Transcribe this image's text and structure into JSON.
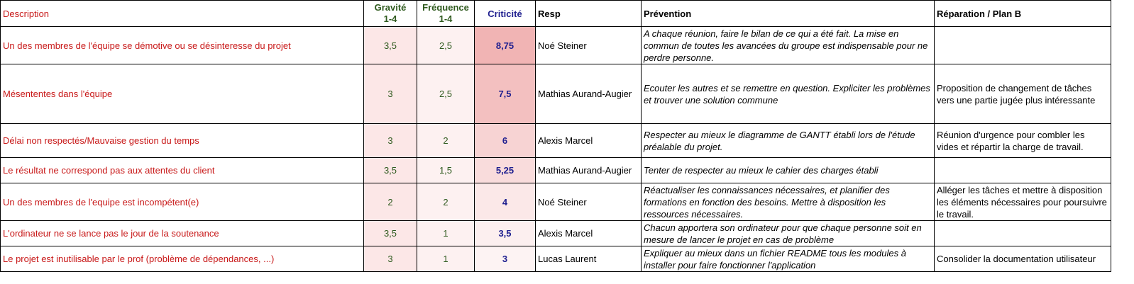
{
  "headers": {
    "description": "Description",
    "gravite": "Gravité",
    "gravite_range": "1-4",
    "frequence": "Fréquence",
    "frequence_range": "1-4",
    "criticite": "Criticité",
    "resp": "Resp",
    "prevention": "Prévention",
    "reparation": "Réparation / Plan B"
  },
  "colors": {
    "description_text": "#c81818",
    "gravity_text": "#2f5a1e",
    "criticity_text": "#1f1f8f"
  },
  "rows": [
    {
      "description": "Un des membres de l'équipe se démotive ou se désinteresse du projet",
      "gravite": "3,5",
      "frequence": "2,5",
      "criticite": "8,75",
      "crit_color": "#f1b4b4",
      "resp": "Noé Steiner",
      "prevention": "A chaque réunion, faire le bilan de ce qui a été fait. La mise en commun de toutes les avancées du groupe est indispensable pour ne perdre personne.",
      "reparation": ""
    },
    {
      "description": "Mésententes dans l'équipe",
      "gravite": "3",
      "frequence": "2,5",
      "criticite": "7,5",
      "crit_color": "#f3c0c0",
      "resp": "Mathias Aurand-Augier",
      "prevention": "Ecouter les autres et se remettre en question. Expliciter les problèmes et trouver une solution commune",
      "reparation": "Proposition de changement de tâches vers une partie jugée plus intéressante"
    },
    {
      "description": "Délai non respectés/Mauvaise gestion du temps",
      "gravite": "3",
      "frequence": "2",
      "criticite": "6",
      "crit_color": "#f7d3d3",
      "resp": "Alexis Marcel",
      "prevention": "Respecter au mieux le diagramme de GANTT établi lors de l'étude préalable du projet.",
      "reparation": "Réunion d'urgence pour combler les vides et répartir la charge de travail."
    },
    {
      "description": "Le résultat ne correspond pas aux attentes du client",
      "gravite": "3,5",
      "frequence": "1,5",
      "criticite": "5,25",
      "crit_color": "#f9dcdc",
      "resp": "Mathias Aurand-Augier",
      "prevention": "Tenter de respecter au mieux le cahier des charges établi",
      "reparation": ""
    },
    {
      "description": "Un des membres de l'equipe est incompétent(e)",
      "gravite": "2",
      "frequence": "2",
      "criticite": "4",
      "crit_color": "#fbe8e8",
      "resp": "Noé Steiner",
      "prevention": "Réactualiser les connaissances nécessaires, et planifier des formations en fonction des besoins. Mettre à disposition les ressources nécessaires.",
      "reparation": "Alléger les tâches et mettre à disposition les éléments nécessaires pour poursuivre le travail."
    },
    {
      "description": "L'ordinateur ne se lance pas le jour de la soutenance",
      "gravite": "3,5",
      "frequence": "1",
      "criticite": "3,5",
      "crit_color": "#fcefef",
      "resp": "Alexis Marcel",
      "prevention": "Chacun apportera son ordinateur pour que chaque personne soit en mesure de lancer le projet en cas de problème",
      "reparation": ""
    },
    {
      "description": "Le projet est inutilisable par le prof (problème de dépendances, ...)",
      "gravite": "3",
      "frequence": "1",
      "criticite": "3",
      "crit_color": "#fdf3f3",
      "resp": "Lucas Laurent",
      "prevention": "Expliquer au mieux dans un fichier README tous les modules à installer pour faire fonctionner l'application",
      "reparation": "Consolider la documentation utilisateur"
    }
  ]
}
